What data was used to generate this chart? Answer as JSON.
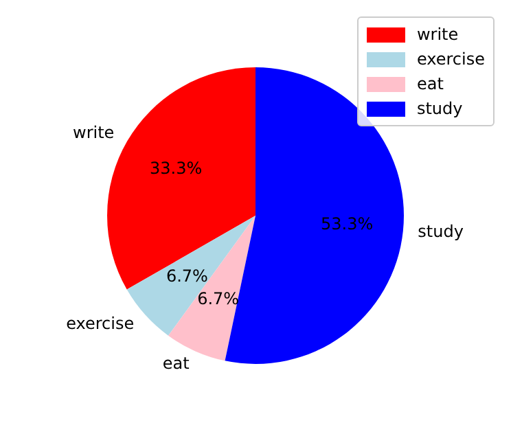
{
  "chart_data": {
    "type": "pie",
    "categories": [
      "write",
      "exercise",
      "eat",
      "study"
    ],
    "values": [
      33.3,
      6.7,
      6.7,
      53.3
    ],
    "value_labels": [
      "33.3%",
      "6.7%",
      "6.7%",
      "53.3%"
    ],
    "colors": [
      "#ff0000",
      "#add8e6",
      "#ffc0cb",
      "#0000ff"
    ],
    "legend": "top right"
  }
}
